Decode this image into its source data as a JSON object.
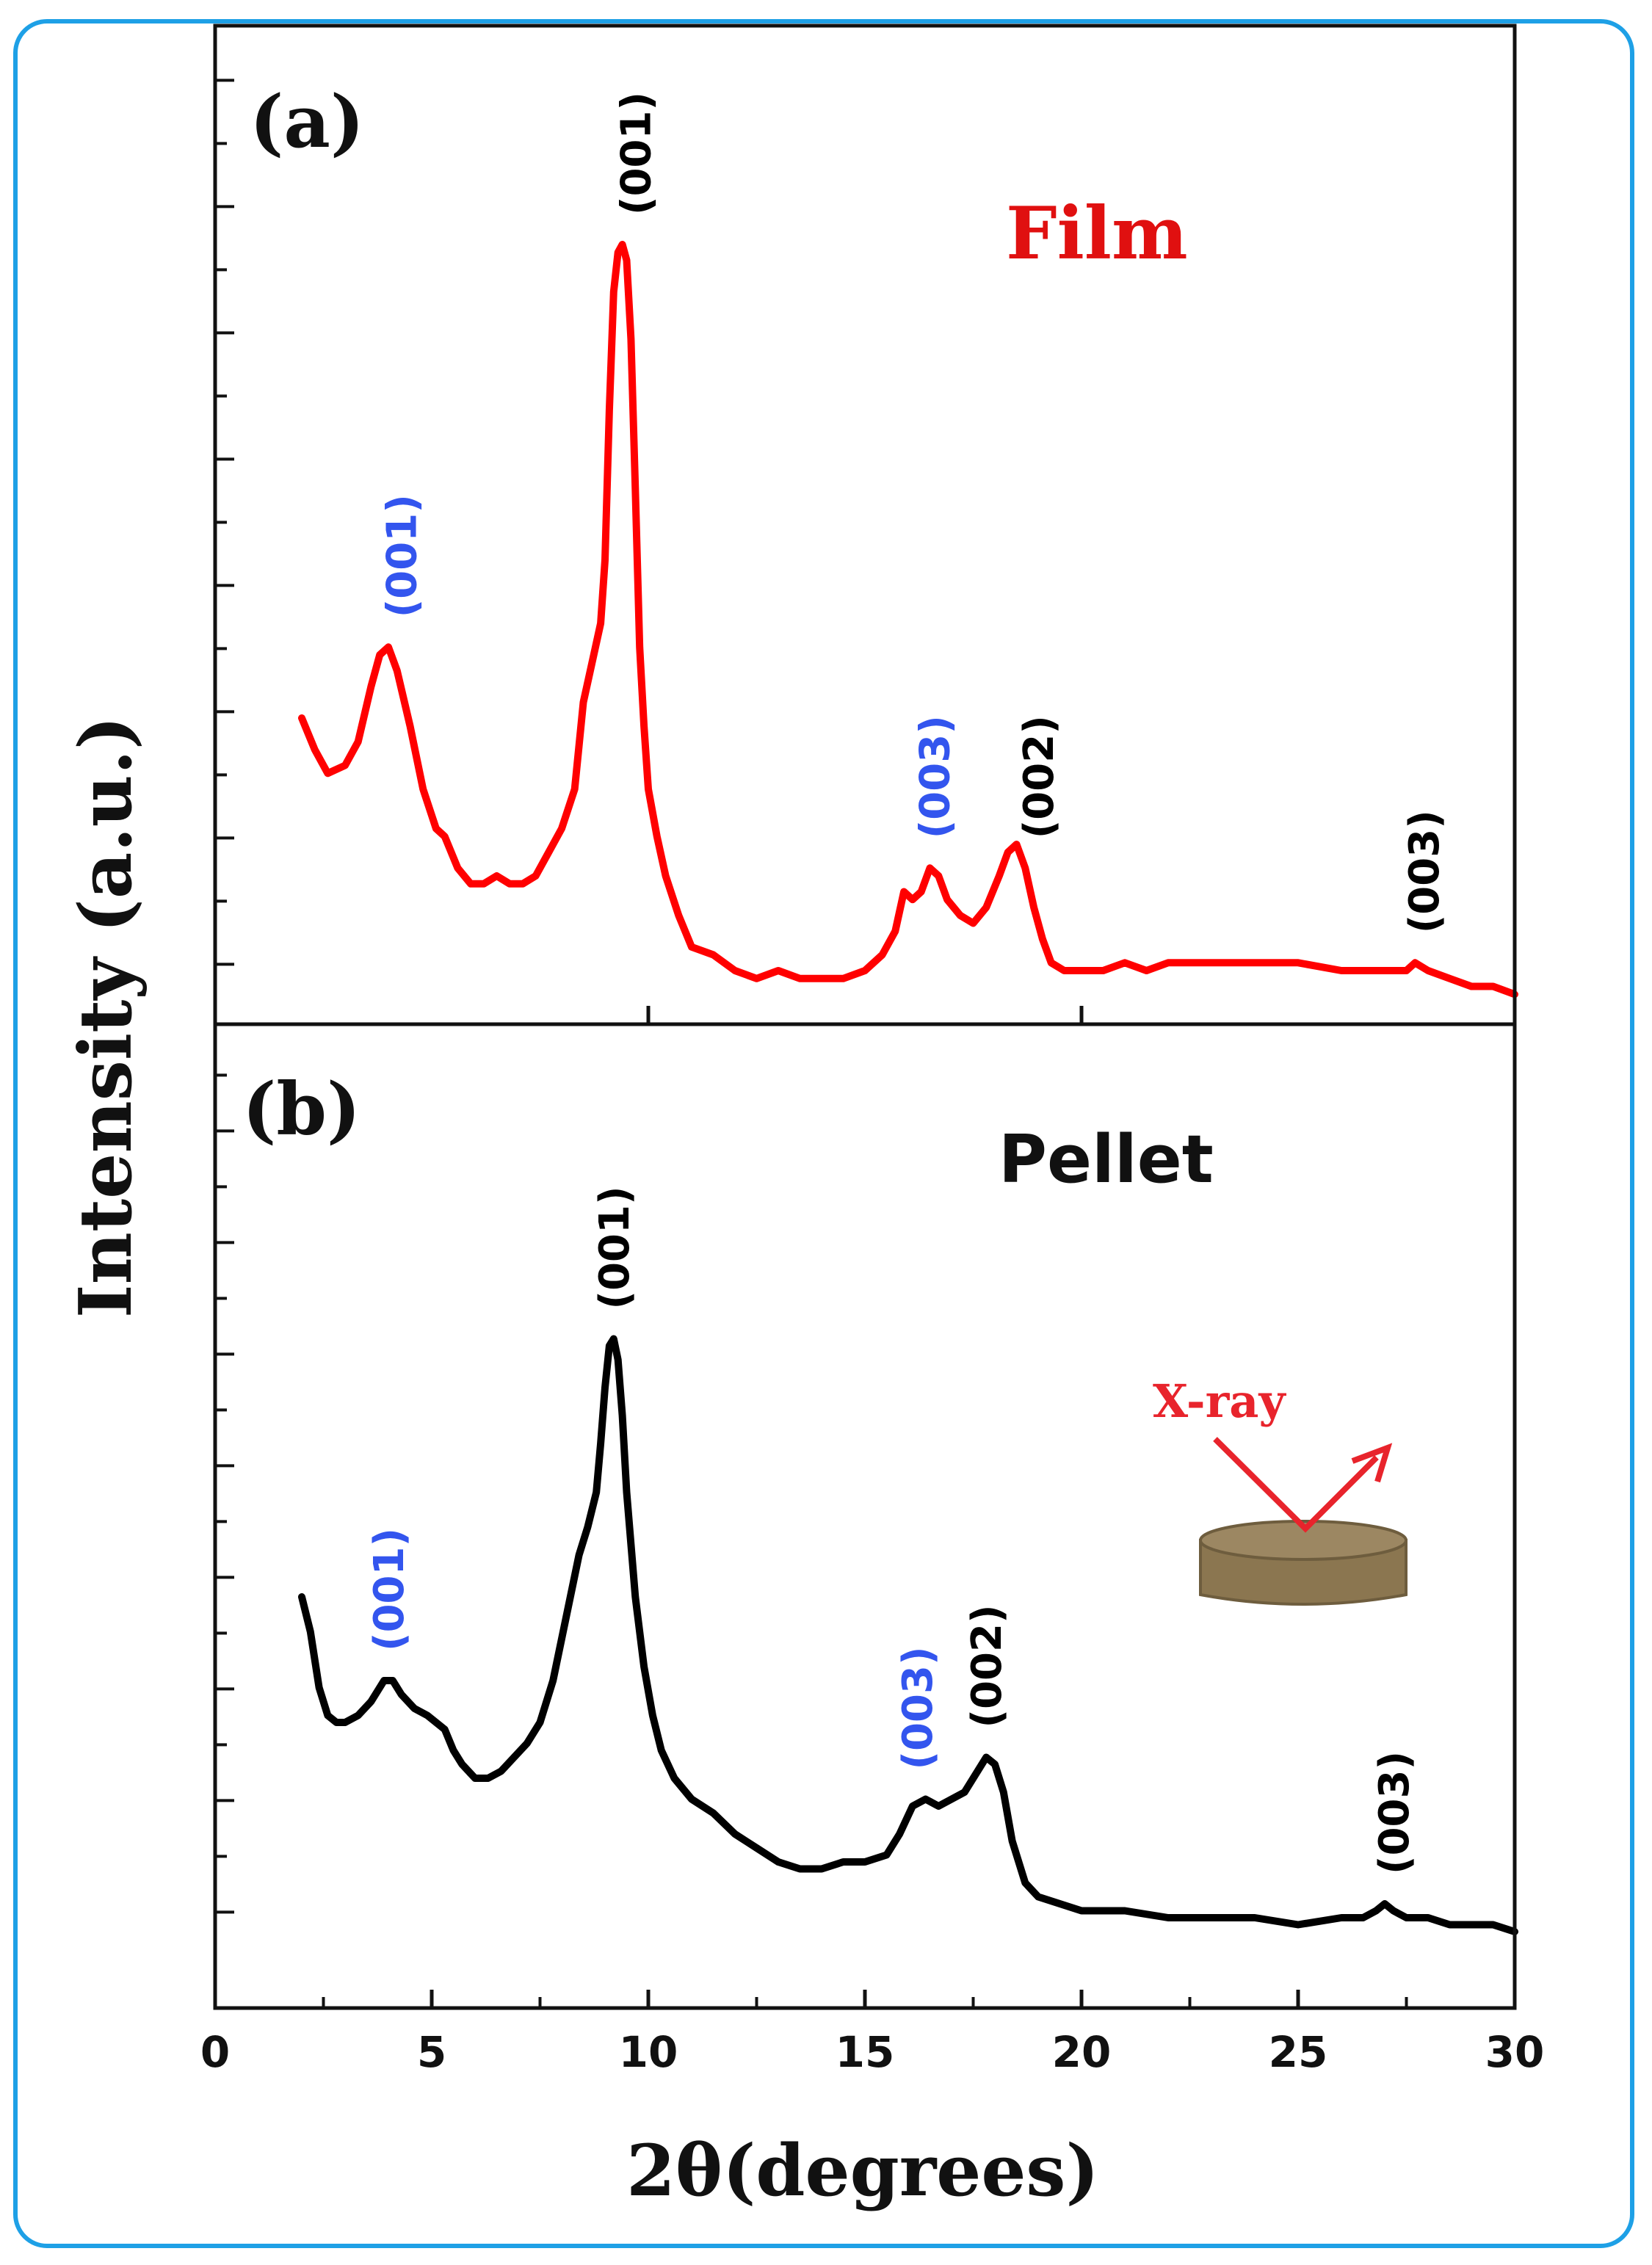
{
  "chart_data": {
    "type": "line",
    "xlabel": "2θ(degrees)",
    "ylabel": "Intensity (a.u.)",
    "xlim": [
      0,
      30
    ],
    "x_ticks": [
      0,
      5,
      10,
      15,
      20,
      25,
      30
    ],
    "x_tick_labels": [
      "0",
      "5",
      "10",
      "15",
      "20",
      "25",
      "30"
    ],
    "grid": false,
    "colors": {
      "film": "#ff0000",
      "pellet": "#000000",
      "blue_label": "#3355ee",
      "black_label": "#000000",
      "pellet_icon": "#8b7650"
    },
    "panels": [
      {
        "panel_label": "(a)",
        "sample_label": "Film",
        "sample_label_color": "#e01010",
        "ylim": [
          0,
          100
        ],
        "series": [
          {
            "color": "#ff0000",
            "x": [
              2.0,
              2.3,
              2.6,
              3.0,
              3.3,
              3.6,
              3.8,
              4.0,
              4.2,
              4.5,
              4.8,
              5.1,
              5.3,
              5.6,
              5.9,
              6.2,
              6.5,
              6.8,
              7.1,
              7.4,
              7.7,
              8.0,
              8.3,
              8.5,
              8.7,
              8.9,
              9.0,
              9.1,
              9.2,
              9.3,
              9.4,
              9.5,
              9.6,
              9.7,
              9.8,
              9.9,
              10.0,
              10.2,
              10.4,
              10.7,
              11.0,
              11.5,
              12.0,
              12.5,
              13.0,
              13.5,
              14.0,
              14.5,
              15.0,
              15.4,
              15.7,
              15.9,
              16.1,
              16.3,
              16.5,
              16.7,
              16.9,
              17.2,
              17.5,
              17.8,
              18.1,
              18.3,
              18.5,
              18.7,
              18.9,
              19.1,
              19.3,
              19.6,
              20.0,
              20.5,
              21.0,
              21.5,
              22.0,
              23.0,
              24.0,
              25.0,
              26.0,
              27.0,
              27.5,
              27.7,
              28.0,
              28.5,
              29.0,
              29.5,
              30.0
            ],
            "y": [
              36,
              32,
              29,
              30,
              33,
              40,
              44,
              45,
              42,
              35,
              27,
              22,
              21,
              17,
              15,
              15,
              16,
              15,
              15,
              16,
              19,
              22,
              27,
              38,
              43,
              48,
              56,
              75,
              90,
              95,
              96,
              94,
              84,
              65,
              45,
              35,
              27,
              21,
              16,
              11,
              7,
              6,
              4,
              3,
              4,
              3,
              3,
              3,
              4,
              6,
              9,
              14,
              13,
              14,
              17,
              16,
              13,
              11,
              10,
              12,
              16,
              19,
              20,
              17,
              12,
              8,
              5,
              4,
              4,
              4,
              5,
              4,
              5,
              5,
              5,
              5,
              4,
              4,
              4,
              5,
              4,
              3,
              2,
              2,
              1
            ]
          }
        ],
        "annotations": [
          {
            "text": "(001)",
            "x": 4.3,
            "color": "#3355ee"
          },
          {
            "text": "(001)",
            "x": 9.7,
            "color": "#000000"
          },
          {
            "text": "(003)",
            "x": 16.6,
            "color": "#3355ee"
          },
          {
            "text": "(002)",
            "x": 19.0,
            "color": "#000000"
          },
          {
            "text": "(003)",
            "x": 27.9,
            "color": "#000000"
          }
        ]
      },
      {
        "panel_label": "(b)",
        "sample_label": "Pellet",
        "sample_label_color": "#111111",
        "ylim": [
          0,
          100
        ],
        "inset_label": "X-ray",
        "inset_label_color": "#e8242c",
        "series": [
          {
            "color": "#000000",
            "x": [
              2.0,
              2.2,
              2.4,
              2.6,
              2.8,
              3.0,
              3.3,
              3.6,
              3.9,
              4.1,
              4.3,
              4.6,
              4.9,
              5.1,
              5.3,
              5.5,
              5.7,
              6.0,
              6.3,
              6.6,
              6.9,
              7.2,
              7.5,
              7.8,
              8.0,
              8.2,
              8.4,
              8.6,
              8.8,
              8.9,
              9.0,
              9.1,
              9.2,
              9.3,
              9.4,
              9.5,
              9.7,
              9.9,
              10.1,
              10.3,
              10.6,
              11.0,
              11.5,
              12.0,
              12.5,
              13.0,
              13.5,
              14.0,
              14.5,
              15.0,
              15.5,
              15.8,
              16.1,
              16.4,
              16.7,
              17.0,
              17.3,
              17.6,
              17.8,
              18.0,
              18.2,
              18.4,
              18.7,
              19.0,
              19.5,
              20.0,
              21.0,
              22.0,
              23.0,
              24.0,
              25.0,
              26.0,
              26.5,
              26.8,
              27.0,
              27.2,
              27.5,
              28.0,
              28.5,
              29.0,
              29.5,
              30.0
            ],
            "y": [
              50,
              45,
              37,
              33,
              32,
              32,
              33,
              35,
              38,
              38,
              36,
              34,
              33,
              32,
              31,
              28,
              26,
              24,
              24,
              25,
              27,
              29,
              32,
              38,
              44,
              50,
              56,
              60,
              65,
              72,
              80,
              86,
              87,
              84,
              76,
              65,
              50,
              40,
              33,
              28,
              24,
              21,
              19,
              16,
              14,
              12,
              11,
              11,
              12,
              12,
              13,
              16,
              20,
              21,
              20,
              21,
              22,
              25,
              27,
              26,
              22,
              15,
              9,
              7,
              6,
              5,
              5,
              4,
              4,
              4,
              3,
              4,
              4,
              5,
              6,
              5,
              4,
              4,
              3,
              3,
              3,
              2
            ]
          }
        ],
        "annotations": [
          {
            "text": "(001)",
            "x": 4.0,
            "color": "#3355ee"
          },
          {
            "text": "(001)",
            "x": 9.2,
            "color": "#000000"
          },
          {
            "text": "(003)",
            "x": 16.2,
            "color": "#3355ee"
          },
          {
            "text": "(002)",
            "x": 17.8,
            "color": "#000000"
          },
          {
            "text": "(003)",
            "x": 27.2,
            "color": "#000000"
          }
        ]
      }
    ]
  }
}
